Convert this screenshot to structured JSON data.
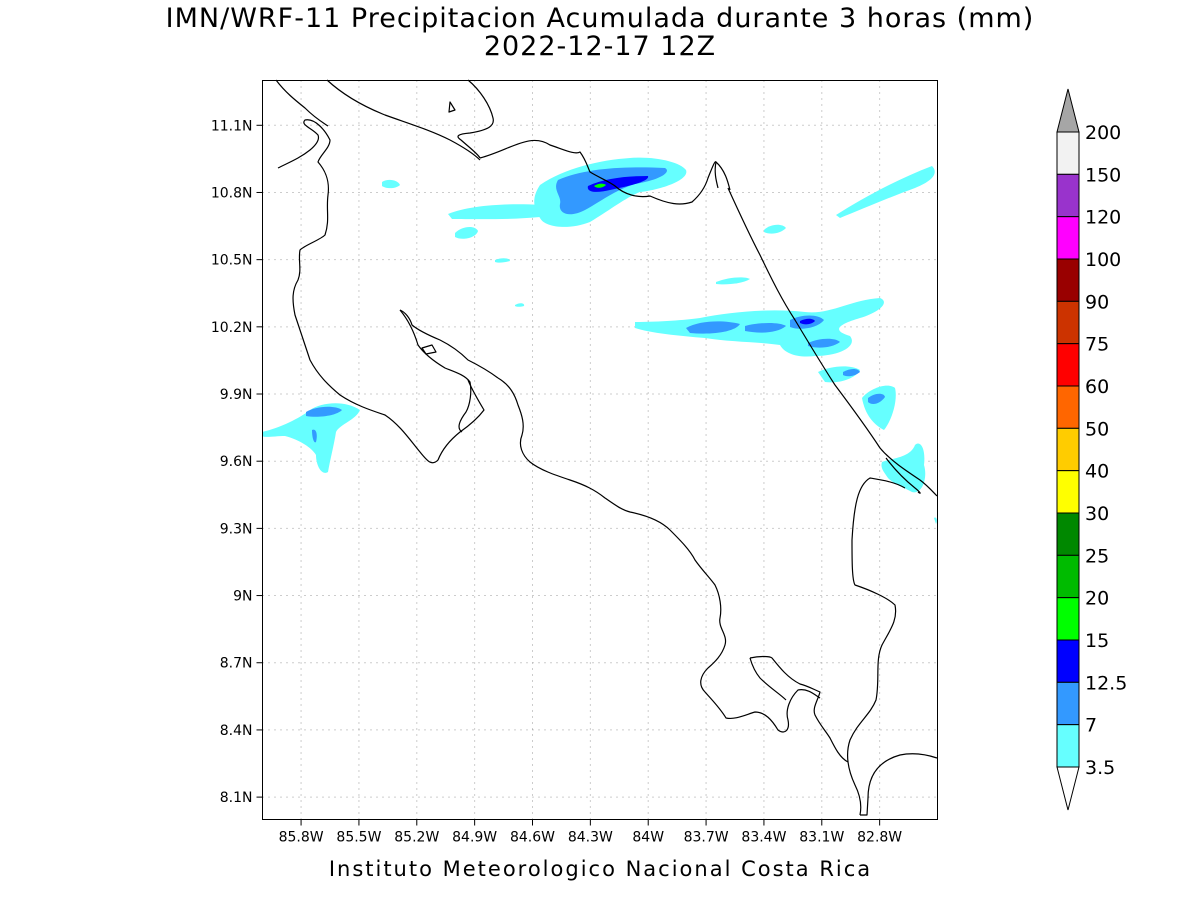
{
  "title": {
    "line1": "IMN/WRF-11 Precipitacion Acumulada durante 3 horas (mm)",
    "line2": "2022-12-17 12Z"
  },
  "credit": "Instituto Meteorologico Nacional Costa Rica",
  "axes": {
    "lat_labels": [
      "11.1N",
      "10.8N",
      "10.5N",
      "10.2N",
      "9.9N",
      "9.6N",
      "9.3N",
      "9N",
      "8.7N",
      "8.4N",
      "8.1N"
    ],
    "lon_labels": [
      "85.8W",
      "85.5W",
      "85.2W",
      "84.9W",
      "84.6W",
      "84.3W",
      "84W",
      "83.7W",
      "83.4W",
      "83.1W",
      "82.8W"
    ],
    "lat_range": [
      8.0,
      11.3
    ],
    "lon_range": [
      -86.0,
      -82.5
    ],
    "grid": true
  },
  "colorbar": {
    "labels": [
      "200",
      "150",
      "120",
      "100",
      "90",
      "75",
      "60",
      "50",
      "40",
      "30",
      "25",
      "20",
      "15",
      "12.5",
      "7",
      "3.5"
    ],
    "colors": [
      "#f2f2f2",
      "#9933cc",
      "#ff00ff",
      "#990000",
      "#cc3300",
      "#ff0000",
      "#ff6600",
      "#ffcc00",
      "#ffff00",
      "#008800",
      "#00bb00",
      "#00ff00",
      "#0000ff",
      "#3399ff",
      "#66ffff"
    ],
    "over_color": "#a6a6a6",
    "under_color": "#ffffff"
  },
  "colors": {
    "light": "#66ffff",
    "medium": "#3399ff",
    "heavy": "#0000ff",
    "coast": "#000000",
    "grid": "#999999"
  }
}
